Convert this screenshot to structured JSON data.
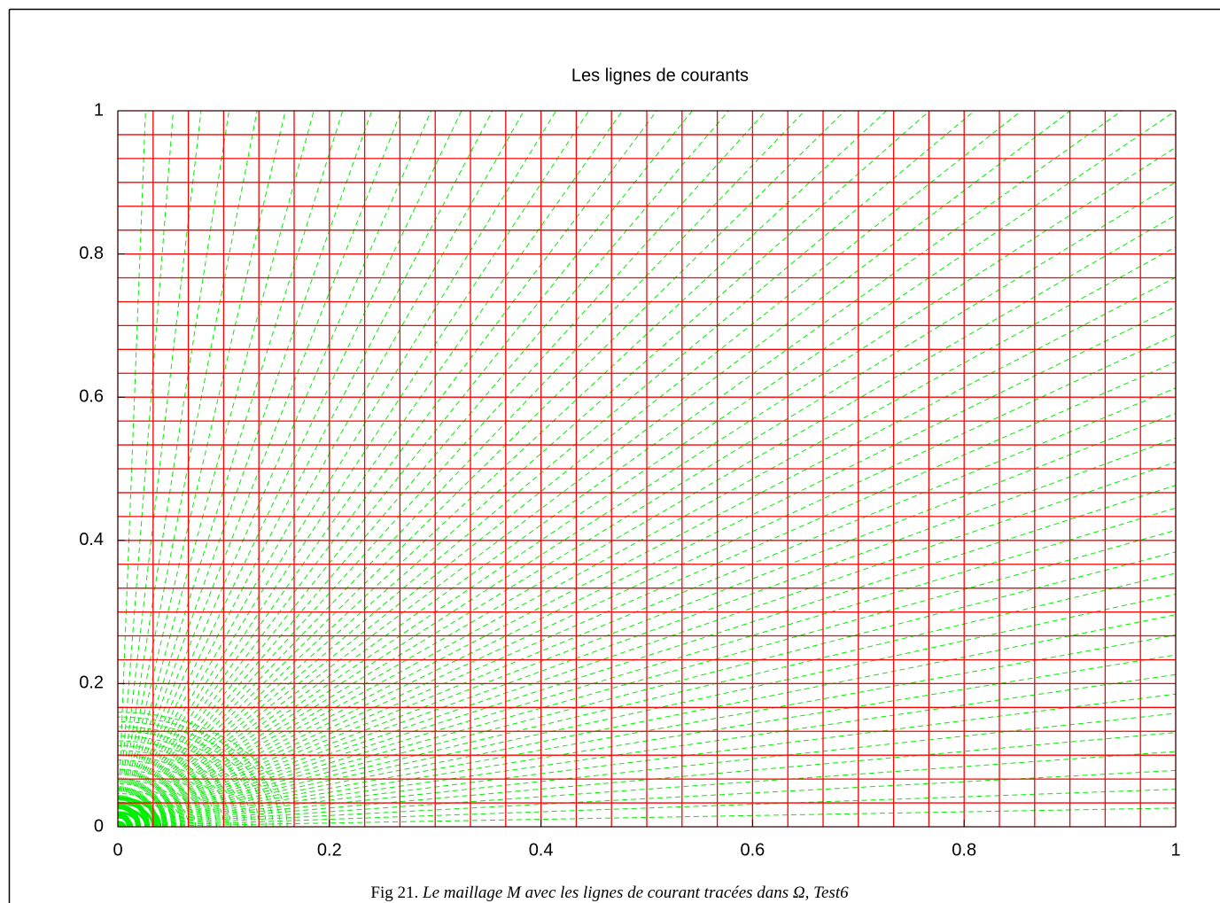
{
  "chart_data": {
    "type": "streamlines",
    "title": "Les lignes de courants",
    "xlim": [
      0,
      1
    ],
    "ylim": [
      0,
      1
    ],
    "xticks": [
      0,
      0.2,
      0.4,
      0.6,
      0.8,
      1
    ],
    "yticks": [
      0,
      0.2,
      0.4,
      0.6,
      0.8,
      1
    ],
    "mesh_divisions": 30,
    "mesh_color": "#ff0000",
    "ray_count": 60,
    "arc_count": 24,
    "arc_max_radius": 0.16,
    "stream_color": "#00ee00"
  },
  "caption": {
    "label": "Fig 21.",
    "text": "Le maillage M avec les lignes de courant tracées dans Ω, Test6"
  }
}
